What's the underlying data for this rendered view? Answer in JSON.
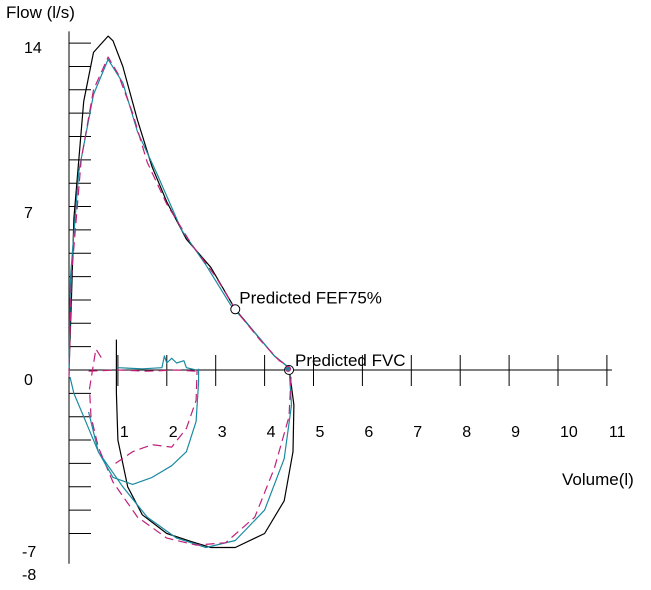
{
  "chart_data": {
    "type": "line",
    "title": "",
    "ylabel": "Flow (l/s)",
    "xlabel": "Volume(l)",
    "xlim": [
      0,
      11
    ],
    "ylim": [
      -8,
      14
    ],
    "x_tick_labels": [
      "1",
      "2",
      "3",
      "4",
      "5",
      "6",
      "7",
      "8",
      "9",
      "10",
      "11"
    ],
    "y_tick_labels": [
      "14",
      "7",
      "0",
      "-7",
      "-8"
    ],
    "annotations": [
      {
        "text": "Predicted FEF75%",
        "x": 3.4,
        "y": 2.6
      },
      {
        "text": "Predicted FVC",
        "x": 4.5,
        "y": 0.0
      }
    ],
    "colors": {
      "axis": "#000000",
      "black": "#000000",
      "blue": "#1a8aa0",
      "magenta": "#c0207a"
    },
    "series": [
      {
        "color": "black",
        "dash": "solid",
        "points": [
          [
            0,
            0
          ],
          [
            0.05,
            3
          ],
          [
            0.1,
            6.5
          ],
          [
            0.3,
            11.5
          ],
          [
            0.5,
            13.6
          ],
          [
            0.8,
            14.3
          ],
          [
            0.9,
            14.1
          ],
          [
            1.1,
            13.0
          ],
          [
            1.4,
            10.7
          ],
          [
            1.7,
            8.7
          ],
          [
            2.0,
            7.2
          ],
          [
            2.4,
            5.6
          ],
          [
            2.9,
            4.4
          ],
          [
            3.4,
            2.6
          ],
          [
            3.8,
            1.6
          ],
          [
            4.2,
            0.6
          ],
          [
            4.5,
            0.1
          ],
          [
            4.6,
            -1.5
          ],
          [
            4.58,
            -3.5
          ],
          [
            4.4,
            -5.6
          ],
          [
            4.0,
            -7.0
          ],
          [
            3.4,
            -7.6
          ],
          [
            2.9,
            -7.6
          ],
          [
            2.5,
            -7.35
          ],
          [
            2.0,
            -7.0
          ],
          [
            1.5,
            -6.2
          ],
          [
            1.2,
            -5.0
          ],
          [
            1.0,
            -3.0
          ],
          [
            0.97,
            -1.0
          ],
          [
            0.97,
            1.3
          ]
        ]
      },
      {
        "color": "blue",
        "dash": "solid",
        "points": [
          [
            0,
            -0.2
          ],
          [
            0.03,
            4.0
          ],
          [
            0.2,
            8.5
          ],
          [
            0.5,
            11.8
          ],
          [
            0.8,
            13.3
          ],
          [
            1.1,
            12.3
          ],
          [
            1.4,
            10.2
          ],
          [
            1.8,
            8.4
          ],
          [
            2.3,
            6.0
          ],
          [
            2.8,
            4.5
          ],
          [
            3.3,
            2.8
          ],
          [
            3.8,
            1.6
          ],
          [
            4.2,
            0.6
          ],
          [
            4.5,
            0.1
          ],
          [
            4.55,
            -1.5
          ],
          [
            4.4,
            -3.8
          ],
          [
            4.0,
            -6.0
          ],
          [
            3.4,
            -7.3
          ],
          [
            2.8,
            -7.6
          ],
          [
            2.2,
            -7.2
          ],
          [
            1.6,
            -6.3
          ],
          [
            1.1,
            -5.0
          ],
          [
            0.6,
            -3.5
          ],
          [
            0.3,
            -2.0
          ],
          [
            0.1,
            -1.0
          ],
          [
            0.02,
            -0.3
          ]
        ]
      },
      {
        "color": "magenta",
        "dash": "dashed",
        "points": [
          [
            0,
            -0.3
          ],
          [
            0.05,
            4.0
          ],
          [
            0.25,
            9.0
          ],
          [
            0.5,
            12.0
          ],
          [
            0.8,
            13.4
          ],
          [
            1.0,
            12.7
          ],
          [
            1.3,
            11.0
          ],
          [
            1.6,
            8.9
          ],
          [
            2.0,
            7.1
          ],
          [
            2.5,
            5.4
          ],
          [
            3.0,
            4.0
          ],
          [
            3.4,
            2.6
          ],
          [
            3.9,
            1.3
          ],
          [
            4.3,
            0.4
          ],
          [
            4.55,
            0.1
          ],
          [
            4.5,
            -2.0
          ],
          [
            4.2,
            -4.2
          ],
          [
            3.8,
            -6.3
          ],
          [
            3.2,
            -7.4
          ],
          [
            2.6,
            -7.5
          ],
          [
            2.0,
            -7.2
          ],
          [
            1.4,
            -6.3
          ],
          [
            0.9,
            -4.8
          ],
          [
            0.6,
            -3.3
          ],
          [
            0.45,
            -2.0
          ],
          [
            0.42,
            -0.8
          ],
          [
            0.55,
            0.9
          ],
          [
            0.7,
            0.4
          ]
        ]
      },
      {
        "color": "blue",
        "dash": "solid",
        "points": [
          [
            0.4,
            -1.8
          ],
          [
            0.6,
            -3.5
          ],
          [
            0.9,
            -4.6
          ],
          [
            1.3,
            -4.9
          ],
          [
            1.7,
            -4.6
          ],
          [
            2.1,
            -4.1
          ],
          [
            2.4,
            -3.5
          ],
          [
            2.6,
            -2.2
          ],
          [
            2.65,
            -0.5
          ],
          [
            2.65,
            0.05
          ]
        ]
      },
      {
        "color": "magenta",
        "dash": "dashed",
        "points": [
          [
            0.95,
            -4.0
          ],
          [
            1.3,
            -3.5
          ],
          [
            1.7,
            -3.2
          ],
          [
            2.1,
            -3.3
          ],
          [
            2.4,
            -2.5
          ],
          [
            2.6,
            -1.3
          ],
          [
            2.62,
            0.0
          ]
        ]
      },
      {
        "color": "blue",
        "dash": "solid",
        "points": [
          [
            1.0,
            0.1
          ],
          [
            1.5,
            0.05
          ],
          [
            1.9,
            0.1
          ],
          [
            1.95,
            0.6
          ],
          [
            2.0,
            0.3
          ],
          [
            2.1,
            0.5
          ],
          [
            2.2,
            0.3
          ],
          [
            2.35,
            0.4
          ],
          [
            2.4,
            0.1
          ],
          [
            2.6,
            0.0
          ]
        ]
      },
      {
        "color": "magenta",
        "dash": "dashed",
        "points": [
          [
            0.4,
            -0.05
          ],
          [
            1.0,
            0.0
          ],
          [
            1.6,
            -0.05
          ],
          [
            2.2,
            0.0
          ],
          [
            2.6,
            -0.05
          ]
        ]
      }
    ],
    "markers": [
      {
        "x": 3.4,
        "y": 2.6,
        "kind": "circle"
      },
      {
        "x": 4.5,
        "y": 0.0,
        "kind": "circle"
      },
      {
        "x": 4.48,
        "y": 0.05,
        "kind": "dot"
      }
    ]
  }
}
